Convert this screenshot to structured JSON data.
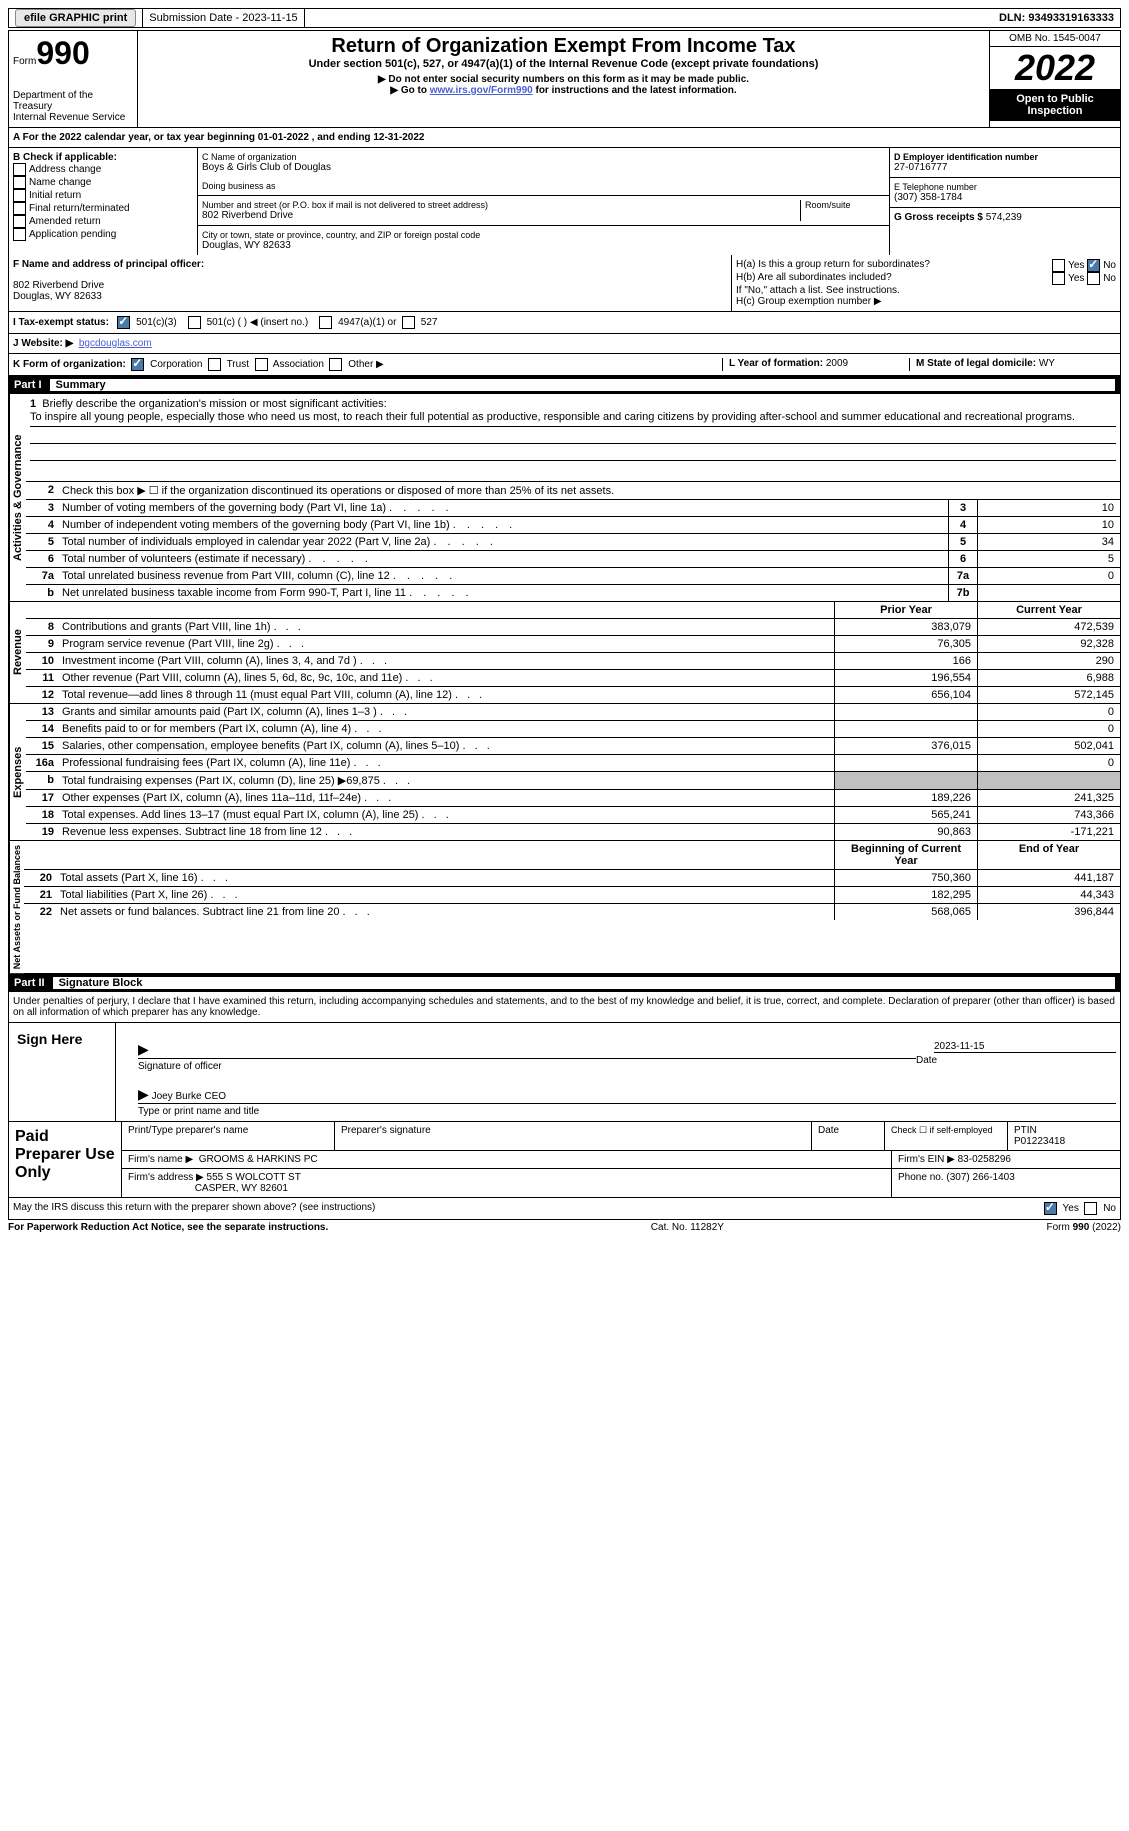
{
  "colors": {
    "black": "#000000",
    "white": "#ffffff",
    "link": "#4a5fd0",
    "check_bg": "#4a7ba6",
    "shade": "#c0c0c0",
    "btn_bg": "#e8e8e8"
  },
  "topbar": {
    "efile": "efile GRAPHIC print",
    "submission": "Submission Date - 2023-11-15",
    "dln_label": "DLN:",
    "dln": "93493319163333"
  },
  "header": {
    "form_word": "Form",
    "form_num": "990",
    "dept": "Department of the Treasury",
    "irs": "Internal Revenue Service",
    "title": "Return of Organization Exempt From Income Tax",
    "subtitle": "Under section 501(c), 527, or 4947(a)(1) of the Internal Revenue Code (except private foundations)",
    "note1": "▶ Do not enter social security numbers on this form as it may be made public.",
    "note2_prefix": "▶ Go to ",
    "note2_link": "www.irs.gov/Form990",
    "note2_suffix": " for instructions and the latest information.",
    "omb": "OMB No. 1545-0047",
    "year": "2022",
    "open": "Open to Public Inspection"
  },
  "line_A": "A For the 2022 calendar year, or tax year beginning 01-01-2022    , and ending 12-31-2022",
  "box_B": {
    "label": "B Check if applicable:",
    "items": [
      "Address change",
      "Name change",
      "Initial return",
      "Final return/terminated",
      "Amended return",
      "Application pending"
    ]
  },
  "box_C": {
    "name_label": "C Name of organization",
    "name": "Boys & Girls Club of Douglas",
    "dba_label": "Doing business as",
    "dba": "",
    "street_label": "Number and street (or P.O. box if mail is not delivered to street address)",
    "room_label": "Room/suite",
    "street": "802 Riverbend Drive",
    "city_label": "City or town, state or province, country, and ZIP or foreign postal code",
    "city": "Douglas, WY  82633"
  },
  "box_D": {
    "label": "D Employer identification number",
    "value": "27-0716777"
  },
  "box_E": {
    "label": "E Telephone number",
    "value": "(307) 358-1784"
  },
  "box_G": {
    "label": "G Gross receipts $",
    "value": "574,239"
  },
  "box_F": {
    "label": "F  Name and address of principal officer:",
    "addr1": "802 Riverbend Drive",
    "addr2": "Douglas, WY  82633"
  },
  "box_H": {
    "a": "H(a)  Is this a group return for subordinates?",
    "b": "H(b)  Are all subordinates included?",
    "note": "If \"No,\" attach a list. See instructions.",
    "c": "H(c)  Group exemption number ▶",
    "yes": "Yes",
    "no": "No"
  },
  "box_I": {
    "label": "I  Tax-exempt status:",
    "opt1": "501(c)(3)",
    "opt2": "501(c) (   ) ◀ (insert no.)",
    "opt3": "4947(a)(1) or",
    "opt4": "527"
  },
  "box_J": {
    "label": "J  Website: ▶",
    "value": "bgcdouglas.com"
  },
  "box_K": {
    "label": "K Form of organization:",
    "opts": [
      "Corporation",
      "Trust",
      "Association",
      "Other ▶"
    ]
  },
  "box_L": {
    "label": "L Year of formation:",
    "value": "2009"
  },
  "box_M": {
    "label": "M State of legal domicile:",
    "value": "WY"
  },
  "part1": {
    "num": "Part I",
    "title": "Summary"
  },
  "summary": {
    "q1_label": "1",
    "q1_text": "Briefly describe the organization's mission or most significant activities:",
    "mission": "To inspire all young people, especially those who need us most, to reach their full potential as productive, responsible and caring citizens by providing after-school and summer educational and recreational programs.",
    "q2": "Check this box ▶ ☐  if the organization discontinued its operations or disposed of more than 25% of its net assets.",
    "rows_gov": [
      {
        "n": "3",
        "t": "Number of voting members of the governing body (Part VI, line 1a)",
        "box": "3",
        "v": "10"
      },
      {
        "n": "4",
        "t": "Number of independent voting members of the governing body (Part VI, line 1b)",
        "box": "4",
        "v": "10"
      },
      {
        "n": "5",
        "t": "Total number of individuals employed in calendar year 2022 (Part V, line 2a)",
        "box": "5",
        "v": "34"
      },
      {
        "n": "6",
        "t": "Total number of volunteers (estimate if necessary)",
        "box": "6",
        "v": "5"
      },
      {
        "n": "7a",
        "t": "Total unrelated business revenue from Part VIII, column (C), line 12",
        "box": "7a",
        "v": "0"
      },
      {
        "n": "b",
        "t": "Net unrelated business taxable income from Form 990-T, Part I, line 11",
        "box": "7b",
        "v": ""
      }
    ],
    "col_prior": "Prior Year",
    "col_current": "Current Year",
    "rows_rev": [
      {
        "n": "8",
        "t": "Contributions and grants (Part VIII, line 1h)",
        "p": "383,079",
        "c": "472,539"
      },
      {
        "n": "9",
        "t": "Program service revenue (Part VIII, line 2g)",
        "p": "76,305",
        "c": "92,328"
      },
      {
        "n": "10",
        "t": "Investment income (Part VIII, column (A), lines 3, 4, and 7d )",
        "p": "166",
        "c": "290"
      },
      {
        "n": "11",
        "t": "Other revenue (Part VIII, column (A), lines 5, 6d, 8c, 9c, 10c, and 11e)",
        "p": "196,554",
        "c": "6,988"
      },
      {
        "n": "12",
        "t": "Total revenue—add lines 8 through 11 (must equal Part VIII, column (A), line 12)",
        "p": "656,104",
        "c": "572,145"
      }
    ],
    "rows_exp": [
      {
        "n": "13",
        "t": "Grants and similar amounts paid (Part IX, column (A), lines 1–3 )",
        "p": "",
        "c": "0"
      },
      {
        "n": "14",
        "t": "Benefits paid to or for members (Part IX, column (A), line 4)",
        "p": "",
        "c": "0"
      },
      {
        "n": "15",
        "t": "Salaries, other compensation, employee benefits (Part IX, column (A), lines 5–10)",
        "p": "376,015",
        "c": "502,041"
      },
      {
        "n": "16a",
        "t": "Professional fundraising fees (Part IX, column (A), line 11e)",
        "p": "",
        "c": "0"
      },
      {
        "n": "b",
        "t": "Total fundraising expenses (Part IX, column (D), line 25) ▶69,875",
        "p": "SHADE",
        "c": "SHADE"
      },
      {
        "n": "17",
        "t": "Other expenses (Part IX, column (A), lines 11a–11d, 11f–24e)",
        "p": "189,226",
        "c": "241,325"
      },
      {
        "n": "18",
        "t": "Total expenses. Add lines 13–17 (must equal Part IX, column (A), line 25)",
        "p": "565,241",
        "c": "743,366"
      },
      {
        "n": "19",
        "t": "Revenue less expenses. Subtract line 18 from line 12",
        "p": "90,863",
        "c": "-171,221"
      }
    ],
    "col_begin": "Beginning of Current Year",
    "col_end": "End of Year",
    "rows_net": [
      {
        "n": "20",
        "t": "Total assets (Part X, line 16)",
        "p": "750,360",
        "c": "441,187"
      },
      {
        "n": "21",
        "t": "Total liabilities (Part X, line 26)",
        "p": "182,295",
        "c": "44,343"
      },
      {
        "n": "22",
        "t": "Net assets or fund balances. Subtract line 21 from line 20",
        "p": "568,065",
        "c": "396,844"
      }
    ],
    "side_labels": {
      "gov": "Activities & Governance",
      "rev": "Revenue",
      "exp": "Expenses",
      "net": "Net Assets or Fund Balances"
    }
  },
  "part2": {
    "num": "Part II",
    "title": "Signature Block"
  },
  "sig": {
    "perjury": "Under penalties of perjury, I declare that I have examined this return, including accompanying schedules and statements, and to the best of my knowledge and belief, it is true, correct, and complete. Declaration of preparer (other than officer) is based on all information of which preparer has any knowledge.",
    "sign_here": "Sign Here",
    "sig_officer": "Signature of officer",
    "date": "Date",
    "sig_date": "2023-11-15",
    "name_title": "Joey Burke  CEO",
    "type_name": "Type or print name and title"
  },
  "paid": {
    "label": "Paid Preparer Use Only",
    "h1": "Print/Type preparer's name",
    "h2": "Preparer's signature",
    "h3": "Date",
    "h4_a": "Check ☐ if self-employed",
    "h4_b": "PTIN",
    "ptin": "P01223418",
    "firm_name_l": "Firm's name    ▶",
    "firm_name": "GROOMS & HARKINS PC",
    "firm_ein_l": "Firm's EIN ▶",
    "firm_ein": "83-0258296",
    "firm_addr_l": "Firm's address ▶",
    "firm_addr1": "555 S WOLCOTT ST",
    "firm_addr2": "CASPER, WY  82601",
    "phone_l": "Phone no.",
    "phone": "(307) 266-1403"
  },
  "footer": {
    "discuss": "May the IRS discuss this return with the preparer shown above? (see instructions)",
    "yes": "Yes",
    "no": "No",
    "paperwork": "For Paperwork Reduction Act Notice, see the separate instructions.",
    "cat": "Cat. No. 11282Y",
    "form": "Form 990 (2022)"
  }
}
